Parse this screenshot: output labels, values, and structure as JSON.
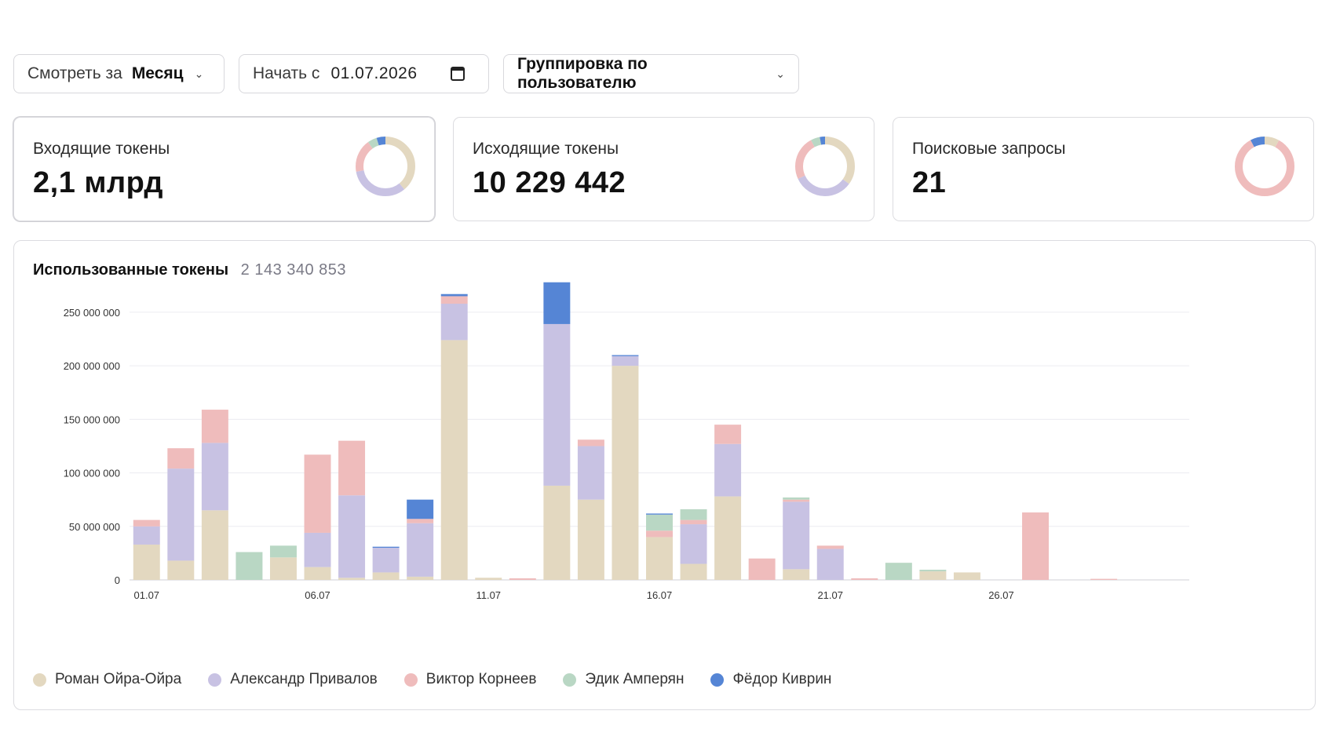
{
  "toolbar": {
    "period_prefix": "Смотреть за",
    "period_value": "Месяц",
    "start_prefix": "Начать с",
    "start_value": "01.07.2026",
    "grouping_label": "Группировка по пользователю"
  },
  "colors": {
    "roman": "#e3d8c0",
    "alexandr": "#c8c2e3",
    "viktor": "#efbcbc",
    "edik": "#b9d7c4",
    "fedor": "#5585d5"
  },
  "cards": [
    {
      "title": "Входящие токены",
      "value": "2,1 млрд",
      "shares": [
        {
          "key": "roman",
          "v": 0.39
        },
        {
          "key": "alexandr",
          "v": 0.33
        },
        {
          "key": "viktor",
          "v": 0.18
        },
        {
          "key": "edik",
          "v": 0.05
        },
        {
          "key": "fedor",
          "v": 0.05
        }
      ]
    },
    {
      "title": "Исходящие токены",
      "value": "10 229 442",
      "shares": [
        {
          "key": "roman",
          "v": 0.35
        },
        {
          "key": "alexandr",
          "v": 0.33
        },
        {
          "key": "viktor",
          "v": 0.24
        },
        {
          "key": "edik",
          "v": 0.05
        },
        {
          "key": "fedor",
          "v": 0.03
        }
      ]
    },
    {
      "title": "Поисковые запросы",
      "value": "21",
      "shares": [
        {
          "key": "roman",
          "v": 0.08
        },
        {
          "key": "alexandr",
          "v": 0.0
        },
        {
          "key": "viktor",
          "v": 0.84
        },
        {
          "key": "edik",
          "v": 0.0
        },
        {
          "key": "fedor",
          "v": 0.08
        }
      ]
    }
  ],
  "panel": {
    "title": "Использованные токены",
    "total": "2 143 340 853"
  },
  "chart_data": {
    "type": "bar",
    "stacked": true,
    "ylim": [
      0,
      280000000
    ],
    "ticks": [
      0,
      50000000,
      100000000,
      150000000,
      200000000,
      250000000
    ],
    "tick_labels": [
      "0",
      "50 000 000",
      "100 000 000",
      "150 000 000",
      "200 000 000",
      "250 000 000"
    ],
    "categories": [
      "01.07",
      "02.07",
      "03.07",
      "04.07",
      "05.07",
      "06.07",
      "07.07",
      "08.07",
      "09.07",
      "10.07",
      "11.07",
      "12.07",
      "13.07",
      "14.07",
      "15.07",
      "16.07",
      "17.07",
      "18.07",
      "19.07",
      "20.07",
      "21.07",
      "22.07",
      "23.07",
      "24.07",
      "25.07",
      "26.07",
      "27.07",
      "28.07",
      "29.07",
      "30.07",
      "31.07"
    ],
    "x_tick_labels": [
      "01.07",
      "",
      "",
      "",
      "",
      "06.07",
      "",
      "",
      "",
      "",
      "11.07",
      "",
      "",
      "",
      "",
      "16.07",
      "",
      "",
      "",
      "",
      "21.07",
      "",
      "",
      "",
      "",
      "26.07",
      "",
      "",
      "",
      "",
      ""
    ],
    "grid": true,
    "legend_position": "bottom-left",
    "series": [
      {
        "name": "Роман Ойра-Ойра",
        "key": "roman",
        "values": [
          33000000,
          18000000,
          65000000,
          0,
          21000000,
          12000000,
          2000000,
          7000000,
          3000000,
          224000000,
          2000000,
          0,
          88000000,
          75000000,
          200000000,
          40000000,
          15000000,
          78000000,
          0,
          10000000,
          0,
          0,
          0,
          8000000,
          7000000,
          0,
          0,
          0,
          0,
          0,
          0
        ]
      },
      {
        "name": "Александр Привалов",
        "key": "alexandr",
        "values": [
          17000000,
          86000000,
          63000000,
          0,
          0,
          32000000,
          77000000,
          23000000,
          50000000,
          34000000,
          0,
          0,
          151000000,
          50000000,
          9000000,
          0,
          37000000,
          49000000,
          0,
          63000000,
          29000000,
          0,
          0,
          0,
          0,
          0,
          0,
          0,
          0,
          0,
          0
        ]
      },
      {
        "name": "Виктор Корнеев",
        "key": "viktor",
        "values": [
          6000000,
          19000000,
          31000000,
          0,
          0,
          73000000,
          51000000,
          0,
          4000000,
          7000000,
          0,
          1500000,
          0,
          6000000,
          0,
          6000000,
          4000000,
          18000000,
          20000000,
          2000000,
          3000000,
          1500000,
          0,
          0,
          0,
          0,
          63000000,
          0,
          1000000,
          0,
          0
        ]
      },
      {
        "name": "Эдик Амперян",
        "key": "edik",
        "values": [
          0,
          0,
          0,
          26000000,
          11000000,
          0,
          0,
          0,
          0,
          0,
          0,
          0,
          0,
          0,
          0,
          15000000,
          10000000,
          0,
          0,
          2000000,
          0,
          0,
          16000000,
          1500000,
          0,
          0,
          0,
          0,
          0,
          0,
          0
        ]
      },
      {
        "name": "Фёдор Киврин",
        "key": "fedor",
        "values": [
          0,
          0,
          0,
          0,
          0,
          0,
          0,
          1000000,
          18000000,
          2000000,
          0,
          0,
          39000000,
          0,
          1000000,
          1000000,
          0,
          0,
          0,
          0,
          0,
          0,
          0,
          0,
          0,
          0,
          0,
          0,
          0,
          0,
          0
        ]
      }
    ]
  }
}
